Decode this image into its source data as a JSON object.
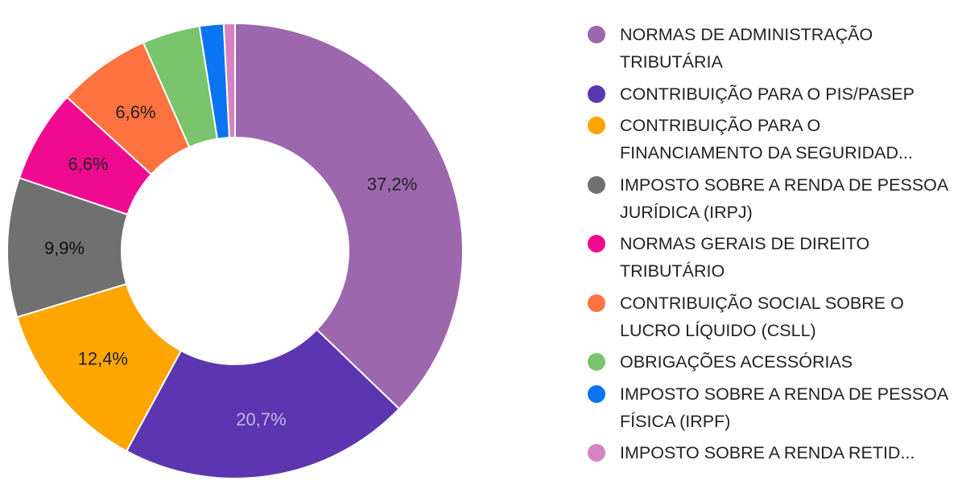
{
  "chart_data": {
    "type": "pie",
    "title": "",
    "donut": true,
    "legend_position": "right",
    "slices": [
      {
        "label": "NORMAS DE ADMINISTRAÇÃO TRIBUTÁRIA",
        "value": 37.2,
        "value_label": "37,2%",
        "color": "#9c67ad",
        "label_color": "#222222"
      },
      {
        "label": "CONTRIBUIÇÃO PARA O PIS/PASEP",
        "value": 20.7,
        "value_label": "20,7%",
        "color": "#5b36b0",
        "label_color": "#c6b4e6"
      },
      {
        "label": "CONTRIBUIÇÃO PARA O FINANCIAMENTO DA SEGURIDAD...",
        "value": 12.4,
        "value_label": "12,4%",
        "color": "#fea500",
        "label_color": "#222222"
      },
      {
        "label": "IMPOSTO SOBRE A RENDA DE PESSOA JURÍDICA (IRPJ)",
        "value": 9.9,
        "value_label": "9,9%",
        "color": "#707070",
        "label_color": "#111111"
      },
      {
        "label": "NORMAS GERAIS DE DIREITO TRIBUTÁRIO",
        "value": 6.6,
        "value_label": "6,6%",
        "color": "#f00a8f",
        "label_color": "#222222"
      },
      {
        "label": "CONTRIBUIÇÃO SOCIAL SOBRE O LUCRO LÍQUIDO (CSLL)",
        "value": 6.6,
        "value_label": "6,6%",
        "color": "#fe7240",
        "label_color": "#222222"
      },
      {
        "label": "OBRIGAÇÕES ACESSÓRIAS",
        "value": 4.1,
        "value_label": "",
        "color": "#79c46d",
        "label_color": "#222222"
      },
      {
        "label": "IMPOSTO SOBRE A RENDA DE PESSOA FÍSICA (IRPF)",
        "value": 1.7,
        "value_label": "",
        "color": "#0a74f2",
        "label_color": "#222222"
      },
      {
        "label": "IMPOSTO SOBRE A RENDA RETID...",
        "value": 0.8,
        "value_label": "",
        "color": "#d783c1",
        "label_color": "#222222"
      }
    ]
  }
}
